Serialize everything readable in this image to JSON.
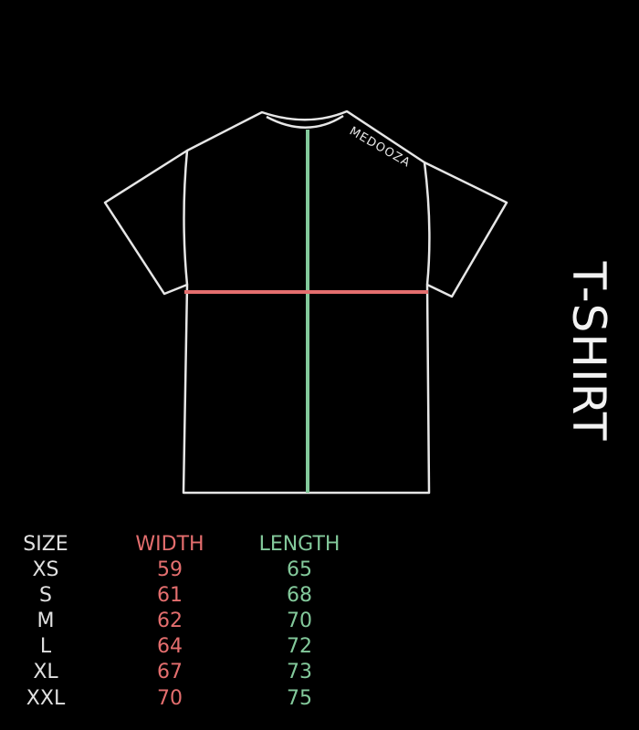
{
  "brand": "MEDOOZA",
  "title": "T-SHIRT",
  "colors": {
    "background": "#000000",
    "outline": "#e6e6e6",
    "width": "#e46e6e",
    "length": "#83c99b"
  },
  "table": {
    "headers": [
      "SIZE",
      "WIDTH",
      "LENGTH"
    ],
    "rows": [
      [
        "XS",
        "59",
        "65"
      ],
      [
        "S",
        "61",
        "68"
      ],
      [
        "M",
        "62",
        "70"
      ],
      [
        "L",
        "64",
        "72"
      ],
      [
        "XL",
        "67",
        "73"
      ],
      [
        "XXL",
        "70",
        "75"
      ]
    ]
  }
}
